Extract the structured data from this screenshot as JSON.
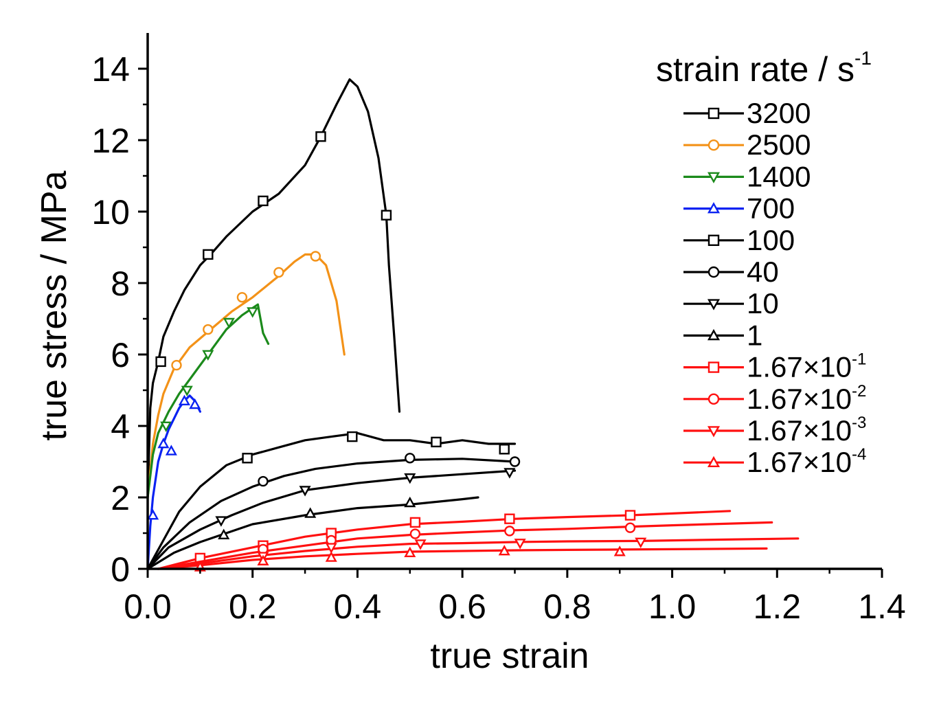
{
  "chart_data": {
    "type": "line",
    "xlabel": "true strain",
    "ylabel": "true stress / MPa",
    "xlim": [
      0,
      1.4
    ],
    "ylim": [
      0,
      15
    ],
    "x_ticks": [
      "0.0",
      "0.2",
      "0.4",
      "0.6",
      "0.8",
      "1.0",
      "1.2",
      "1.4"
    ],
    "y_ticks": [
      "0",
      "2",
      "4",
      "6",
      "8",
      "10",
      "12",
      "14"
    ],
    "legend": {
      "title": "strain rate / s",
      "title_sup": "-1",
      "placement": "top-right"
    },
    "series": [
      {
        "name": "3200",
        "color": "#000000",
        "marker": "square",
        "points": [
          [
            0,
            2
          ],
          [
            0.005,
            4.5
          ],
          [
            0.01,
            5.2
          ],
          [
            0.02,
            5.8
          ],
          [
            0.03,
            6.5
          ],
          [
            0.05,
            7.2
          ],
          [
            0.07,
            7.8
          ],
          [
            0.1,
            8.5
          ],
          [
            0.12,
            8.8
          ],
          [
            0.15,
            9.3
          ],
          [
            0.2,
            10.0
          ],
          [
            0.25,
            10.5
          ],
          [
            0.3,
            11.3
          ],
          [
            0.33,
            12.1
          ],
          [
            0.36,
            13.0
          ],
          [
            0.385,
            13.7
          ],
          [
            0.4,
            13.5
          ],
          [
            0.42,
            12.8
          ],
          [
            0.44,
            11.5
          ],
          [
            0.455,
            9.9
          ],
          [
            0.46,
            8.5
          ],
          [
            0.47,
            6.5
          ],
          [
            0.48,
            4.4
          ]
        ],
        "markers": [
          [
            0.025,
            5.8
          ],
          [
            0.115,
            8.8
          ],
          [
            0.22,
            10.3
          ],
          [
            0.33,
            12.1
          ],
          [
            0.455,
            9.9
          ]
        ]
      },
      {
        "name": "2500",
        "color": "#f39218",
        "marker": "circle",
        "points": [
          [
            0,
            2
          ],
          [
            0.01,
            3.5
          ],
          [
            0.02,
            4.3
          ],
          [
            0.03,
            4.9
          ],
          [
            0.05,
            5.6
          ],
          [
            0.08,
            6.2
          ],
          [
            0.12,
            6.7
          ],
          [
            0.16,
            7.2
          ],
          [
            0.2,
            7.6
          ],
          [
            0.25,
            8.2
          ],
          [
            0.28,
            8.6
          ],
          [
            0.3,
            8.8
          ],
          [
            0.32,
            8.8
          ],
          [
            0.34,
            8.5
          ],
          [
            0.36,
            7.5
          ],
          [
            0.37,
            6.5
          ],
          [
            0.375,
            6.0
          ]
        ],
        "markers": [
          [
            0.055,
            5.7
          ],
          [
            0.115,
            6.7
          ],
          [
            0.18,
            7.6
          ],
          [
            0.25,
            8.3
          ],
          [
            0.32,
            8.75
          ]
        ]
      },
      {
        "name": "1400",
        "color": "#1b8a1b",
        "marker": "triangle-down",
        "points": [
          [
            0,
            2
          ],
          [
            0.01,
            3.2
          ],
          [
            0.02,
            3.8
          ],
          [
            0.04,
            4.4
          ],
          [
            0.06,
            4.9
          ],
          [
            0.09,
            5.5
          ],
          [
            0.12,
            6.1
          ],
          [
            0.15,
            6.7
          ],
          [
            0.18,
            7.1
          ],
          [
            0.2,
            7.3
          ],
          [
            0.21,
            7.4
          ],
          [
            0.215,
            7.0
          ],
          [
            0.22,
            6.6
          ],
          [
            0.23,
            6.3
          ]
        ],
        "markers": [
          [
            0.035,
            4.0
          ],
          [
            0.075,
            5.0
          ],
          [
            0.115,
            6.0
          ],
          [
            0.155,
            6.9
          ],
          [
            0.2,
            7.2
          ]
        ]
      },
      {
        "name": "700",
        "color": "#0a22f2",
        "marker": "triangle-up",
        "points": [
          [
            0,
            0
          ],
          [
            0.005,
            1.2
          ],
          [
            0.01,
            2.0
          ],
          [
            0.02,
            3.0
          ],
          [
            0.03,
            3.5
          ],
          [
            0.04,
            3.9
          ],
          [
            0.05,
            4.2
          ],
          [
            0.06,
            4.5
          ],
          [
            0.07,
            4.7
          ],
          [
            0.08,
            4.85
          ],
          [
            0.09,
            4.7
          ],
          [
            0.1,
            4.4
          ]
        ],
        "markers": [
          [
            0.01,
            1.5
          ],
          [
            0.03,
            3.5
          ],
          [
            0.045,
            3.3
          ],
          [
            0.07,
            4.7
          ],
          [
            0.09,
            4.6
          ]
        ]
      },
      {
        "name": "100",
        "color": "#000000",
        "marker": "square",
        "points": [
          [
            0,
            0
          ],
          [
            0.03,
            0.8
          ],
          [
            0.06,
            1.6
          ],
          [
            0.1,
            2.3
          ],
          [
            0.15,
            2.9
          ],
          [
            0.2,
            3.2
          ],
          [
            0.25,
            3.4
          ],
          [
            0.3,
            3.6
          ],
          [
            0.35,
            3.7
          ],
          [
            0.4,
            3.8
          ],
          [
            0.45,
            3.6
          ],
          [
            0.5,
            3.6
          ],
          [
            0.55,
            3.5
          ],
          [
            0.6,
            3.6
          ],
          [
            0.65,
            3.5
          ],
          [
            0.7,
            3.5
          ]
        ],
        "markers": [
          [
            0.19,
            3.1
          ],
          [
            0.39,
            3.7
          ],
          [
            0.55,
            3.55
          ],
          [
            0.68,
            3.35
          ]
        ]
      },
      {
        "name": "40",
        "color": "#000000",
        "marker": "circle",
        "points": [
          [
            0,
            0
          ],
          [
            0.03,
            0.6
          ],
          [
            0.08,
            1.3
          ],
          [
            0.14,
            1.9
          ],
          [
            0.2,
            2.3
          ],
          [
            0.26,
            2.6
          ],
          [
            0.32,
            2.8
          ],
          [
            0.4,
            2.95
          ],
          [
            0.5,
            3.05
          ],
          [
            0.6,
            3.08
          ],
          [
            0.7,
            3.0
          ]
        ],
        "markers": [
          [
            0.22,
            2.45
          ],
          [
            0.5,
            3.1
          ],
          [
            0.7,
            3.0
          ]
        ]
      },
      {
        "name": "10",
        "color": "#000000",
        "marker": "triangle-down",
        "points": [
          [
            0,
            0
          ],
          [
            0.04,
            0.6
          ],
          [
            0.1,
            1.1
          ],
          [
            0.16,
            1.5
          ],
          [
            0.22,
            1.85
          ],
          [
            0.3,
            2.2
          ],
          [
            0.4,
            2.4
          ],
          [
            0.5,
            2.55
          ],
          [
            0.6,
            2.65
          ],
          [
            0.7,
            2.75
          ]
        ],
        "markers": [
          [
            0.14,
            1.35
          ],
          [
            0.3,
            2.2
          ],
          [
            0.5,
            2.55
          ],
          [
            0.69,
            2.7
          ]
        ]
      },
      {
        "name": "1",
        "color": "#000000",
        "marker": "triangle-up",
        "points": [
          [
            0,
            0
          ],
          [
            0.05,
            0.45
          ],
          [
            0.1,
            0.75
          ],
          [
            0.15,
            1.0
          ],
          [
            0.2,
            1.25
          ],
          [
            0.3,
            1.5
          ],
          [
            0.4,
            1.7
          ],
          [
            0.5,
            1.8
          ],
          [
            0.6,
            1.95
          ],
          [
            0.63,
            2.0
          ]
        ],
        "markers": [
          [
            0.145,
            0.95
          ],
          [
            0.31,
            1.55
          ],
          [
            0.5,
            1.85
          ]
        ]
      },
      {
        "name": "1.67×10",
        "sup": "-1",
        "color": "#ff1010",
        "marker": "square",
        "points": [
          [
            0.02,
            0
          ],
          [
            0.1,
            0.3
          ],
          [
            0.2,
            0.6
          ],
          [
            0.3,
            0.9
          ],
          [
            0.4,
            1.1
          ],
          [
            0.5,
            1.25
          ],
          [
            0.6,
            1.32
          ],
          [
            0.7,
            1.4
          ],
          [
            0.8,
            1.45
          ],
          [
            0.92,
            1.5
          ],
          [
            1.0,
            1.55
          ],
          [
            1.11,
            1.62
          ]
        ],
        "markers": [
          [
            0.1,
            0.3
          ],
          [
            0.22,
            0.65
          ],
          [
            0.35,
            1.0
          ],
          [
            0.51,
            1.3
          ],
          [
            0.69,
            1.4
          ],
          [
            0.92,
            1.5
          ]
        ]
      },
      {
        "name": "1.67×10",
        "sup": "-2",
        "color": "#ff1010",
        "marker": "circle",
        "points": [
          [
            0.02,
            0
          ],
          [
            0.1,
            0.2
          ],
          [
            0.2,
            0.45
          ],
          [
            0.3,
            0.65
          ],
          [
            0.4,
            0.85
          ],
          [
            0.5,
            0.95
          ],
          [
            0.6,
            1.02
          ],
          [
            0.7,
            1.08
          ],
          [
            0.8,
            1.12
          ],
          [
            0.92,
            1.18
          ],
          [
            1.0,
            1.22
          ],
          [
            1.19,
            1.3
          ]
        ],
        "markers": [
          [
            0.22,
            0.55
          ],
          [
            0.35,
            0.8
          ],
          [
            0.51,
            0.98
          ],
          [
            0.69,
            1.06
          ],
          [
            0.92,
            1.15
          ]
        ]
      },
      {
        "name": "1.67×10",
        "sup": "-3",
        "color": "#ff1010",
        "marker": "triangle-down",
        "points": [
          [
            0.02,
            0
          ],
          [
            0.1,
            0.15
          ],
          [
            0.2,
            0.35
          ],
          [
            0.3,
            0.5
          ],
          [
            0.4,
            0.62
          ],
          [
            0.5,
            0.7
          ],
          [
            0.6,
            0.72
          ],
          [
            0.7,
            0.75
          ],
          [
            0.8,
            0.77
          ],
          [
            0.94,
            0.78
          ],
          [
            1.1,
            0.82
          ],
          [
            1.24,
            0.85
          ]
        ],
        "markers": [
          [
            0.22,
            0.35
          ],
          [
            0.35,
            0.6
          ],
          [
            0.52,
            0.7
          ],
          [
            0.71,
            0.72
          ],
          [
            0.94,
            0.75
          ]
        ]
      },
      {
        "name": "1.67×10",
        "sup": "-4",
        "color": "#ff1010",
        "marker": "triangle-up",
        "points": [
          [
            0.02,
            0
          ],
          [
            0.1,
            0.1
          ],
          [
            0.2,
            0.25
          ],
          [
            0.3,
            0.35
          ],
          [
            0.4,
            0.42
          ],
          [
            0.5,
            0.48
          ],
          [
            0.6,
            0.5
          ],
          [
            0.7,
            0.52
          ],
          [
            0.8,
            0.53
          ],
          [
            0.9,
            0.54
          ],
          [
            1.0,
            0.55
          ],
          [
            1.18,
            0.57
          ]
        ],
        "markers": [
          [
            0.1,
            0.05
          ],
          [
            0.22,
            0.22
          ],
          [
            0.35,
            0.32
          ],
          [
            0.5,
            0.45
          ],
          [
            0.68,
            0.5
          ],
          [
            0.9,
            0.48
          ]
        ]
      }
    ]
  }
}
